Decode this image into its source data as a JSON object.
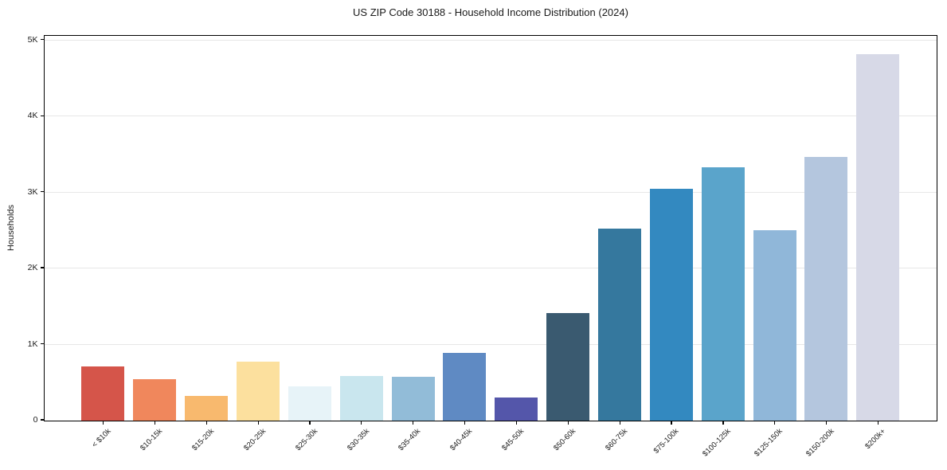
{
  "chart_data": {
    "type": "bar",
    "title": "US ZIP Code 30188 - Household Income Distribution (2024)",
    "xlabel": "",
    "ylabel": "Households",
    "categories": [
      "< $10k",
      "$10-15k",
      "$15-20k",
      "$20-25k",
      "$25-30k",
      "$30-35k",
      "$35-40k",
      "$40-45k",
      "$45-50k",
      "$50-60k",
      "$60-75k",
      "$75-100k",
      "$100-125k",
      "$125-150k",
      "$150-200k",
      "$200k+"
    ],
    "values": [
      710,
      550,
      325,
      775,
      455,
      590,
      580,
      895,
      300,
      1410,
      2530,
      3050,
      3330,
      2505,
      3465,
      4820
    ],
    "bar_colors": [
      "#d5554a",
      "#f0875c",
      "#f8b96e",
      "#fce09e",
      "#e7f3f8",
      "#c9e6ee",
      "#92bcd8",
      "#5f8ac3",
      "#5456aa",
      "#3a5a70",
      "#35789e",
      "#3389c0",
      "#5aa4cb",
      "#90b7d9",
      "#b4c6de",
      "#d7d9e7"
    ],
    "ylim": [
      0,
      5060
    ],
    "yticks": {
      "values": [
        0,
        1000,
        2000,
        3000,
        4000,
        5000
      ],
      "labels": [
        "0",
        "1K",
        "2K",
        "3K",
        "4K",
        "5K"
      ]
    },
    "grid": {
      "axis": "y",
      "color": "#e7e7e7"
    },
    "legend": "none",
    "colors": {
      "axis": "#000000",
      "text": "#1a1a1a",
      "background": "#ffffff"
    }
  }
}
